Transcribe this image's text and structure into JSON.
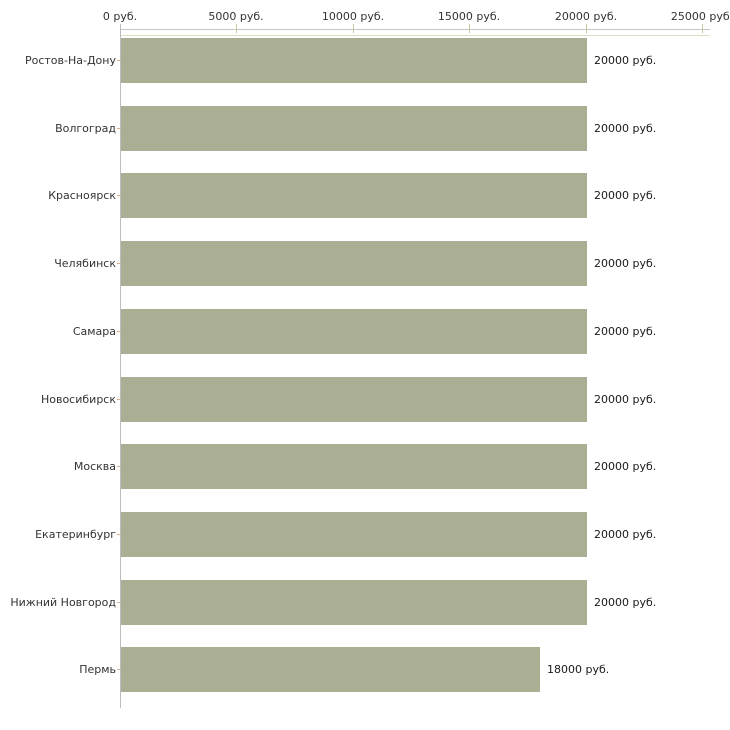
{
  "chart_data": {
    "type": "bar",
    "orientation": "horizontal",
    "title": "",
    "xlabel": "",
    "ylabel": "",
    "grid": false,
    "legend": false,
    "categories": [
      "Ростов-На-Дону",
      "Волгоград",
      "Красноярск",
      "Челябинск",
      "Самара",
      "Новосибирск",
      "Москва",
      "Екатеринбург",
      "Нижний Новгород",
      "Пермь"
    ],
    "values": [
      20000,
      20000,
      20000,
      20000,
      20000,
      20000,
      20000,
      20000,
      20000,
      18000
    ],
    "value_labels": [
      "20000 руб.",
      "20000 руб.",
      "20000 руб.",
      "20000 руб.",
      "20000 руб.",
      "20000 руб.",
      "20000 руб.",
      "20000 руб.",
      "20000 руб.",
      "18000 руб."
    ],
    "x_axis": {
      "position": "top",
      "min": 0,
      "max": 25000,
      "ticks": [
        0,
        5000,
        10000,
        15000,
        20000,
        25000
      ],
      "tick_labels": [
        "0 руб.",
        "5000 руб.",
        "10000 руб.",
        "15000 руб.",
        "20000 руб.",
        "25000 руб."
      ]
    },
    "colors": {
      "bar": "#aaae93",
      "axis_line": "#c6c6c6",
      "axis_tick": "#c8c89e",
      "plot_border": "#deddc2",
      "vertical_axis": "#bdbdbd",
      "category_tick": "#ceb29c",
      "label_text": "#333333",
      "value_text": "#1a1a1a",
      "background": "#ffffff"
    }
  }
}
